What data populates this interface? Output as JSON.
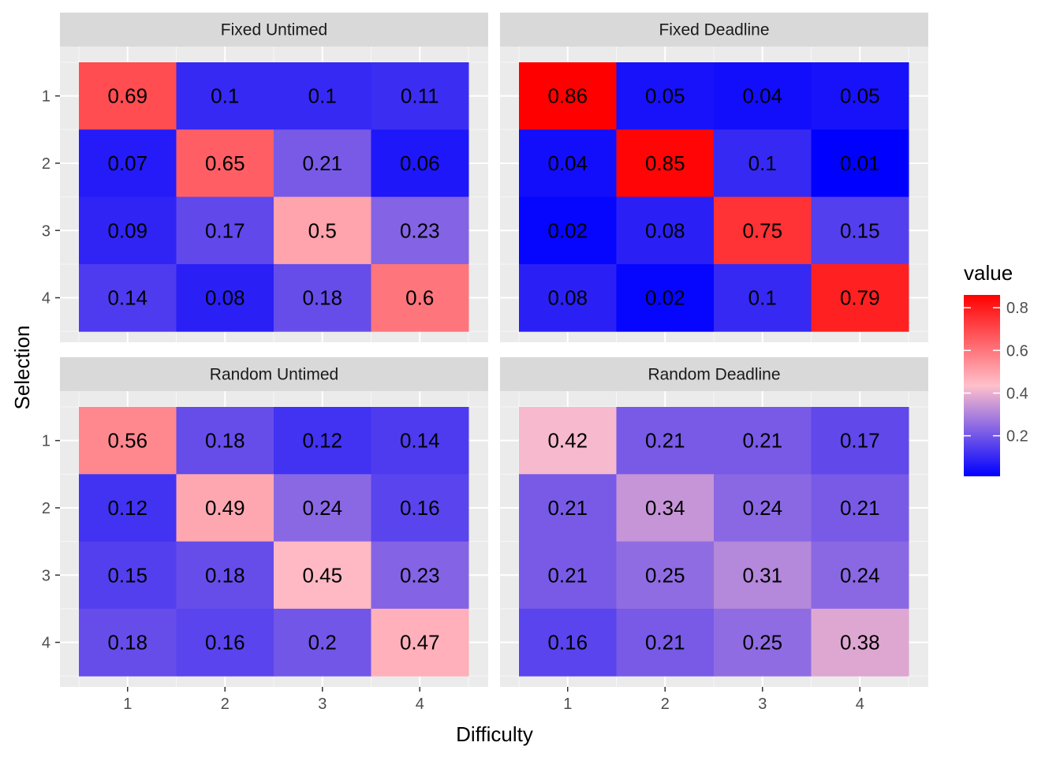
{
  "chart_data": {
    "type": "heatmap",
    "xlabel": "Difficulty",
    "ylabel": "Selection",
    "x_categories": [
      "1",
      "2",
      "3",
      "4"
    ],
    "y_categories": [
      "1",
      "2",
      "3",
      "4"
    ],
    "legend": {
      "title": "value",
      "ticks": [
        "0.2",
        "0.4",
        "0.6",
        "0.8"
      ],
      "tick_values": [
        0.2,
        0.4,
        0.6,
        0.8
      ],
      "min": 0.01,
      "max": 0.86,
      "placement": "right",
      "gradient": [
        "#0000ff",
        "#ffc0cb",
        "#ff0000"
      ]
    },
    "panels": [
      {
        "title": "Fixed Untimed",
        "labels": [
          [
            "0.69",
            "0.1",
            "0.1",
            "0.11"
          ],
          [
            "0.07",
            "0.65",
            "0.21",
            "0.06"
          ],
          [
            "0.09",
            "0.17",
            "0.5",
            "0.23"
          ],
          [
            "0.14",
            "0.08",
            "0.18",
            "0.6"
          ]
        ],
        "values": [
          [
            0.69,
            0.1,
            0.1,
            0.11
          ],
          [
            0.07,
            0.65,
            0.21,
            0.06
          ],
          [
            0.09,
            0.17,
            0.5,
            0.23
          ],
          [
            0.14,
            0.08,
            0.18,
            0.6
          ]
        ]
      },
      {
        "title": "Fixed Deadline",
        "labels": [
          [
            "0.86",
            "0.05",
            "0.04",
            "0.05"
          ],
          [
            "0.04",
            "0.85",
            "0.1",
            "0.01"
          ],
          [
            "0.02",
            "0.08",
            "0.75",
            "0.15"
          ],
          [
            "0.08",
            "0.02",
            "0.1",
            "0.79"
          ]
        ],
        "values": [
          [
            0.86,
            0.05,
            0.04,
            0.05
          ],
          [
            0.04,
            0.85,
            0.1,
            0.01
          ],
          [
            0.02,
            0.08,
            0.75,
            0.15
          ],
          [
            0.08,
            0.02,
            0.1,
            0.79
          ]
        ]
      },
      {
        "title": "Random Untimed",
        "labels": [
          [
            "0.56",
            "0.18",
            "0.12",
            "0.14"
          ],
          [
            "0.12",
            "0.49",
            "0.24",
            "0.16"
          ],
          [
            "0.15",
            "0.18",
            "0.45",
            "0.23"
          ],
          [
            "0.18",
            "0.16",
            "0.2",
            "0.47"
          ]
        ],
        "values": [
          [
            0.56,
            0.18,
            0.12,
            0.14
          ],
          [
            0.12,
            0.49,
            0.24,
            0.16
          ],
          [
            0.15,
            0.18,
            0.45,
            0.23
          ],
          [
            0.18,
            0.16,
            0.2,
            0.47
          ]
        ]
      },
      {
        "title": "Random Deadline",
        "labels": [
          [
            "0.42",
            "0.21",
            "0.21",
            "0.17"
          ],
          [
            "0.21",
            "0.34",
            "0.24",
            "0.21"
          ],
          [
            "0.21",
            "0.25",
            "0.31",
            "0.24"
          ],
          [
            "0.16",
            "0.21",
            "0.25",
            "0.38"
          ]
        ],
        "values": [
          [
            0.42,
            0.21,
            0.21,
            0.17
          ],
          [
            0.21,
            0.34,
            0.24,
            0.21
          ],
          [
            0.21,
            0.25,
            0.31,
            0.24
          ],
          [
            0.16,
            0.21,
            0.25,
            0.38
          ]
        ]
      }
    ],
    "grid": true
  }
}
